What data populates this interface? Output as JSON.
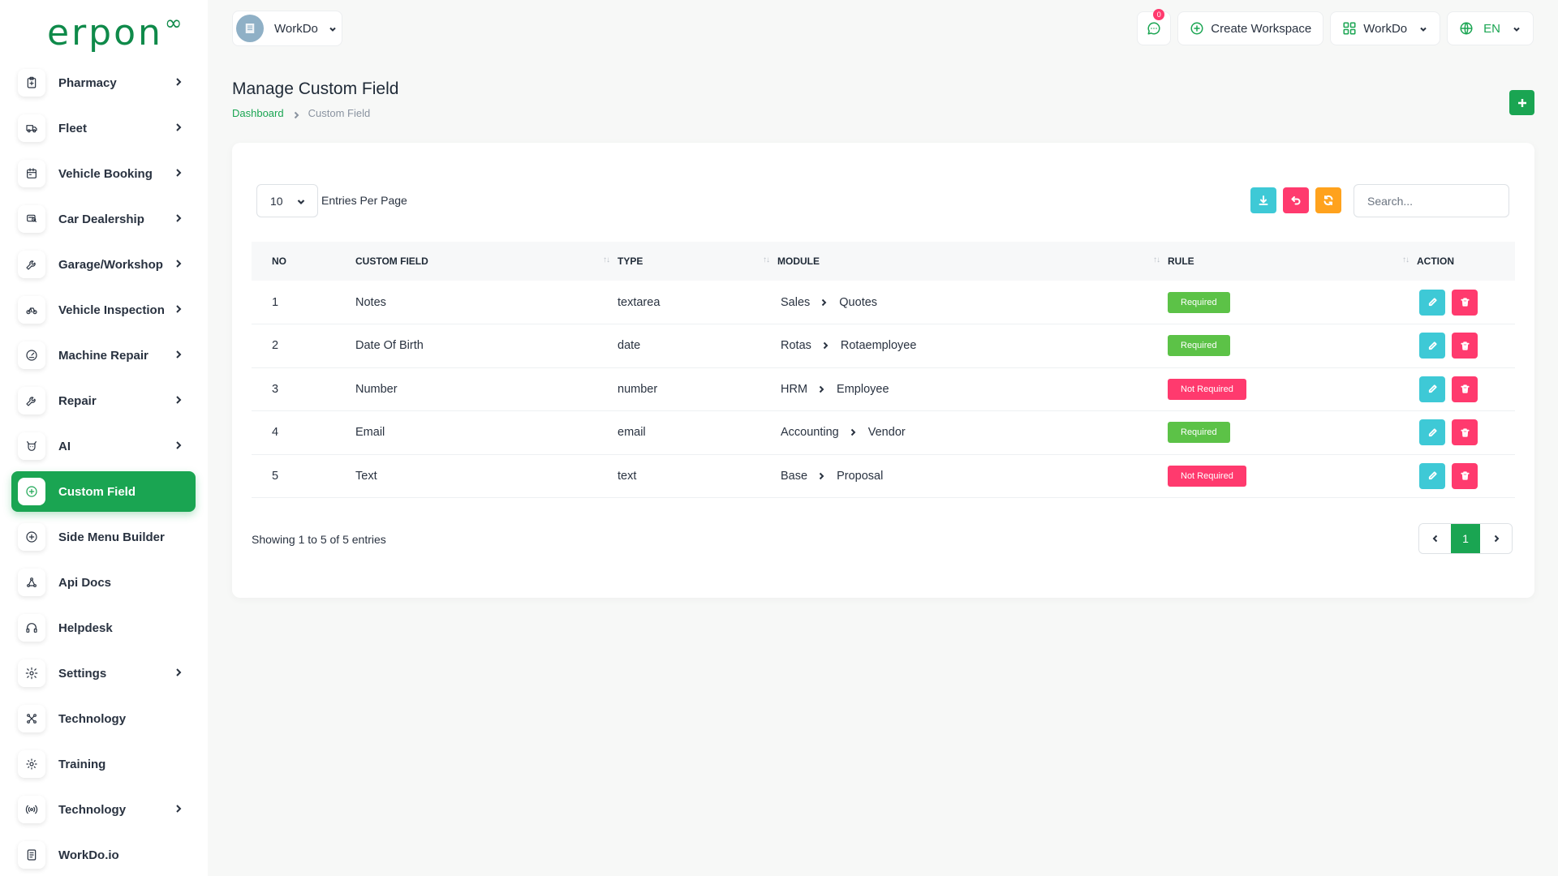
{
  "brand": {
    "logo_text": "erpon",
    "logo_mark": "∞"
  },
  "sidebar": {
    "items": [
      {
        "label": "Pharmacy",
        "icon": "clipboard-icon",
        "chevron": true
      },
      {
        "label": "Fleet",
        "icon": "truck-icon",
        "chevron": true
      },
      {
        "label": "Vehicle Booking",
        "icon": "calendar-icon",
        "chevron": true
      },
      {
        "label": "Car Dealership",
        "icon": "car-icon",
        "chevron": true
      },
      {
        "label": "Garage/Workshop",
        "icon": "wrench-icon",
        "chevron": true
      },
      {
        "label": "Vehicle Inspection",
        "icon": "bike-icon",
        "chevron": true
      },
      {
        "label": "Machine Repair",
        "icon": "gauge-icon",
        "chevron": true
      },
      {
        "label": "Repair",
        "icon": "tool-icon",
        "chevron": true
      },
      {
        "label": "AI",
        "icon": "ai-icon",
        "chevron": true
      },
      {
        "label": "Custom Field",
        "icon": "plus-circle-icon",
        "chevron": false,
        "active": true
      },
      {
        "label": "Side Menu Builder",
        "icon": "plus-circle-icon",
        "chevron": false
      },
      {
        "label": "Api Docs",
        "icon": "api-icon",
        "chevron": false
      },
      {
        "label": "Helpdesk",
        "icon": "headphones-icon",
        "chevron": false
      },
      {
        "label": "Settings",
        "icon": "gear-icon",
        "chevron": true
      },
      {
        "label": "Technology",
        "icon": "network-icon",
        "chevron": false
      },
      {
        "label": "Training",
        "icon": "training-icon",
        "chevron": false
      },
      {
        "label": "Technology",
        "icon": "broadcast-icon",
        "chevron": true
      },
      {
        "label": "WorkDo.io",
        "icon": "document-icon",
        "chevron": false
      }
    ]
  },
  "header": {
    "workspace": "WorkDo",
    "messages_count": "0",
    "create_workspace": "Create Workspace",
    "company": "WorkDo",
    "language": "EN"
  },
  "page": {
    "title": "Manage Custom Field",
    "breadcrumb": {
      "home": "Dashboard",
      "current": "Custom Field"
    }
  },
  "table": {
    "per_page": "10",
    "per_page_label": "Entries Per Page",
    "search_placeholder": "Search...",
    "columns": [
      "No",
      "Custom Field",
      "Type",
      "Module",
      "Rule",
      "Action"
    ],
    "rows": [
      {
        "no": "1",
        "field": "Notes",
        "type": "textarea",
        "module": "Sales",
        "submodule": "Quotes",
        "rule": "Required",
        "required": true
      },
      {
        "no": "2",
        "field": "Date Of Birth",
        "type": "date",
        "module": "Rotas",
        "submodule": "Rotaemployee",
        "rule": "Required",
        "required": true
      },
      {
        "no": "3",
        "field": "Number",
        "type": "number",
        "module": "HRM",
        "submodule": "Employee",
        "rule": "Not Required",
        "required": false
      },
      {
        "no": "4",
        "field": "Email",
        "type": "email",
        "module": "Accounting",
        "submodule": "Vendor",
        "rule": "Required",
        "required": true
      },
      {
        "no": "5",
        "field": "Text",
        "type": "text",
        "module": "Base",
        "submodule": "Proposal",
        "rule": "Not Required",
        "required": false
      }
    ],
    "showing": "Showing 1 to 5 of 5 entries",
    "current_page": "1"
  },
  "colors": {
    "primary": "#1aa552",
    "info": "#3ec9d6",
    "danger": "#ff3a6e",
    "warning": "#ffa21d",
    "success_badge": "#5cc247"
  }
}
